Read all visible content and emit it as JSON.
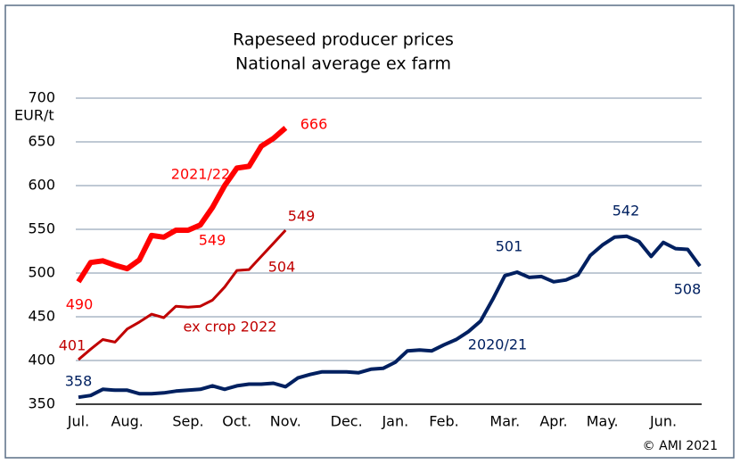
{
  "chart_data": {
    "type": "line",
    "title": "Rapeseed producer prices",
    "subtitle": "National average ex farm",
    "y_label": "EUR/t",
    "source": "© AMI 2021",
    "categories": [
      "Jul.",
      null,
      null,
      null,
      "Aug.",
      null,
      null,
      null,
      null,
      "Sep.",
      null,
      null,
      null,
      "Oct.",
      null,
      null,
      null,
      "Nov.",
      null,
      null,
      null,
      null,
      "Dec.",
      null,
      null,
      null,
      "Jan.",
      null,
      null,
      null,
      "Feb.",
      null,
      null,
      null,
      null,
      "Mar.",
      null,
      null,
      null,
      "Apr.",
      null,
      null,
      null,
      "May.",
      null,
      null,
      null,
      null,
      "Jun.",
      null,
      null,
      null
    ],
    "series": [
      {
        "name": "2021/22",
        "color": "#ff0000",
        "width": 6,
        "values": [
          490,
          512,
          514,
          509,
          505,
          515,
          543,
          541,
          549,
          549,
          555,
          575,
          600,
          620,
          622,
          645,
          654,
          666,
          null,
          null,
          null,
          null,
          null,
          null,
          null,
          null,
          null,
          null,
          null,
          null,
          null,
          null,
          null,
          null,
          null,
          null,
          null,
          null,
          null,
          null,
          null,
          null,
          null,
          null,
          null,
          null,
          null,
          null,
          null,
          null,
          null,
          null
        ]
      },
      {
        "name": "ex crop 2022",
        "color": "#c00000",
        "width": 3,
        "values": [
          401,
          413,
          424,
          421,
          436,
          444,
          453,
          449,
          462,
          461,
          462,
          469,
          484,
          503,
          504,
          519,
          534,
          549,
          null,
          null,
          null,
          null,
          null,
          null,
          null,
          null,
          null,
          null,
          null,
          null,
          null,
          null,
          null,
          null,
          null,
          null,
          null,
          null,
          null,
          null,
          null,
          null,
          null,
          null,
          null,
          null,
          null,
          null,
          null,
          null,
          null,
          null
        ]
      },
      {
        "name": "2020/21",
        "color": "#002060",
        "width": 4,
        "values": [
          358,
          360,
          367,
          366,
          366,
          362,
          362,
          363,
          365,
          366,
          367,
          371,
          367,
          371,
          373,
          373,
          374,
          370,
          380,
          384,
          387,
          387,
          387,
          386,
          390,
          391,
          398,
          411,
          412,
          411,
          418,
          424,
          433,
          445,
          470,
          497,
          501,
          495,
          496,
          490,
          492,
          498,
          520,
          532,
          541,
          542,
          536,
          519,
          535,
          528,
          527,
          508
        ]
      }
    ],
    "annotations": [
      {
        "text": "2021/22",
        "color": "#ff0000"
      },
      {
        "text": "666",
        "color": "#ff0000"
      },
      {
        "text": "549",
        "color": "#ff0000"
      },
      {
        "text": "490",
        "color": "#ff0000"
      },
      {
        "text": "549",
        "color": "#c00000"
      },
      {
        "text": "504",
        "color": "#c00000"
      },
      {
        "text": "401",
        "color": "#c00000"
      },
      {
        "text": "ex crop 2022",
        "color": "#c00000"
      },
      {
        "text": "358",
        "color": "#002060"
      },
      {
        "text": "2020/21",
        "color": "#002060"
      },
      {
        "text": "501",
        "color": "#002060"
      },
      {
        "text": "542",
        "color": "#002060"
      },
      {
        "text": "508",
        "color": "#002060"
      }
    ],
    "ylim": [
      350,
      700
    ],
    "yticks": [
      350,
      400,
      450,
      500,
      550,
      600,
      650,
      700
    ],
    "grid": true
  }
}
